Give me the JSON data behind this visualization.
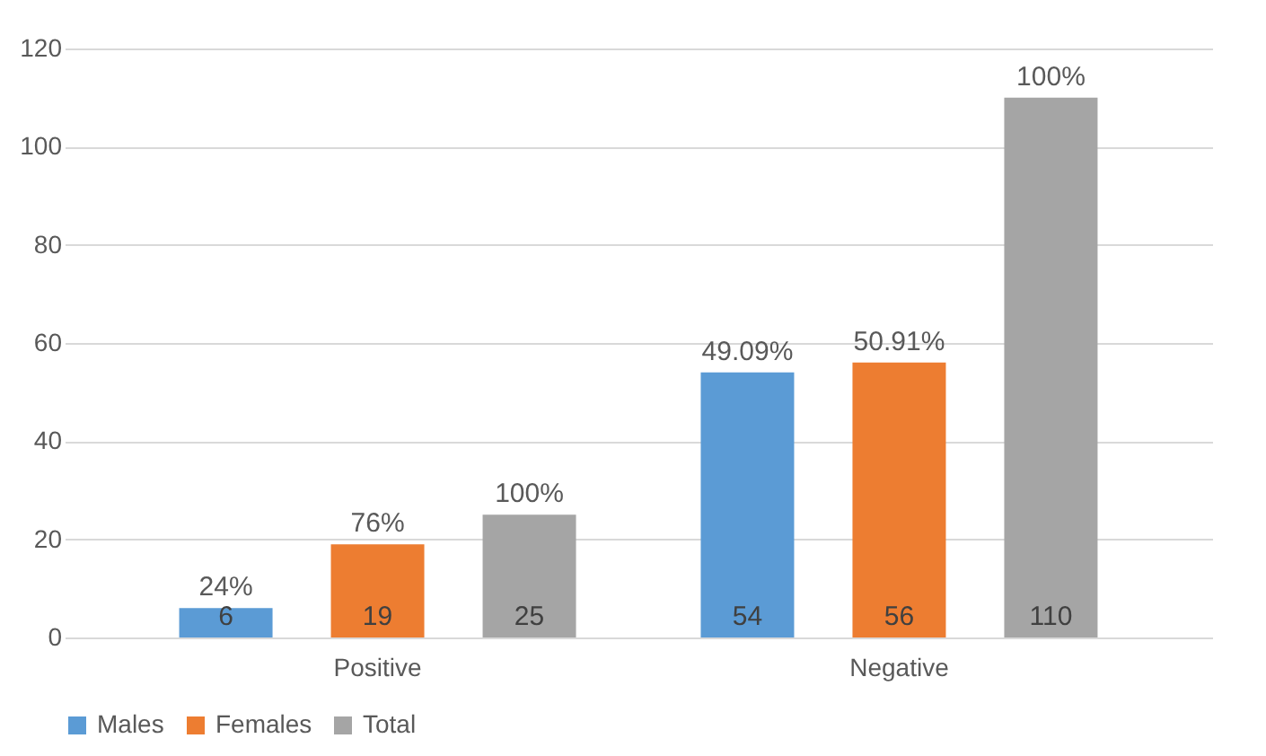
{
  "chart_data": {
    "type": "bar",
    "categories": [
      "Positive",
      "Negative"
    ],
    "series": [
      {
        "name": "Males",
        "color": "#5b9bd5",
        "values": [
          6,
          54
        ]
      },
      {
        "name": "Females",
        "color": "#ed7d31",
        "values": [
          19,
          56
        ]
      },
      {
        "name": "Total",
        "color": "#a5a5a5",
        "values": [
          25,
          110
        ]
      }
    ],
    "annotations": [
      "24%",
      "76%",
      "100%",
      "49.09%",
      "50.91%",
      "100%"
    ],
    "ylim": [
      0,
      120
    ],
    "yticks": [
      0,
      20,
      40,
      60,
      80,
      100,
      120
    ],
    "grid": "y",
    "legend": "bottom",
    "data_labels": true
  }
}
